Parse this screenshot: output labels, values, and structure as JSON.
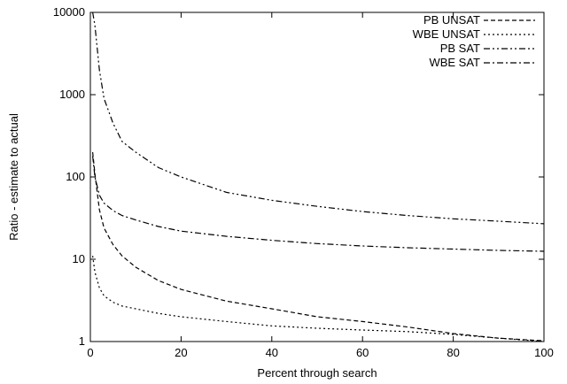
{
  "chart_data": {
    "type": "line",
    "xlabel": "Percent through search",
    "ylabel": "Ratio - estimate to actual",
    "xlim": [
      0,
      100
    ],
    "ylim": [
      1,
      10000
    ],
    "y_scale": "log",
    "grid": false,
    "legend_position": "top-right",
    "x_ticks": [
      "0",
      "20",
      "40",
      "60",
      "80",
      "100"
    ],
    "y_ticks": [
      "1",
      "10",
      "100",
      "1000",
      "10000"
    ],
    "series": [
      {
        "name": "PB UNSAT",
        "style": "dashed",
        "points": [
          [
            0.5,
            200
          ],
          [
            1,
            110
          ],
          [
            2,
            40
          ],
          [
            3,
            24
          ],
          [
            5,
            15
          ],
          [
            7,
            11
          ],
          [
            10,
            8
          ],
          [
            15,
            5.5
          ],
          [
            20,
            4.3
          ],
          [
            30,
            3.1
          ],
          [
            40,
            2.5
          ],
          [
            50,
            2.0
          ],
          [
            60,
            1.75
          ],
          [
            70,
            1.5
          ],
          [
            80,
            1.25
          ],
          [
            90,
            1.1
          ],
          [
            100,
            1.02
          ]
        ]
      },
      {
        "name": "WBE UNSAT",
        "style": "dotted",
        "points": [
          [
            0.5,
            11
          ],
          [
            1,
            7
          ],
          [
            2,
            4.5
          ],
          [
            3,
            3.6
          ],
          [
            5,
            3.0
          ],
          [
            7,
            2.7
          ],
          [
            10,
            2.5
          ],
          [
            15,
            2.2
          ],
          [
            20,
            2.0
          ],
          [
            30,
            1.75
          ],
          [
            40,
            1.55
          ],
          [
            50,
            1.45
          ],
          [
            60,
            1.38
          ],
          [
            70,
            1.32
          ],
          [
            80,
            1.22
          ],
          [
            90,
            1.1
          ],
          [
            100,
            1.0
          ]
        ]
      },
      {
        "name": "PB SAT",
        "style": "dash-dot-dot",
        "points": [
          [
            0.5,
            10000
          ],
          [
            1,
            7000
          ],
          [
            2,
            2000
          ],
          [
            3,
            900
          ],
          [
            5,
            450
          ],
          [
            7,
            270
          ],
          [
            10,
            200
          ],
          [
            15,
            130
          ],
          [
            20,
            100
          ],
          [
            30,
            65
          ],
          [
            40,
            52
          ],
          [
            50,
            44
          ],
          [
            60,
            38
          ],
          [
            70,
            34
          ],
          [
            80,
            31
          ],
          [
            90,
            29
          ],
          [
            100,
            27
          ]
        ]
      },
      {
        "name": "WBE SAT",
        "style": "dash-dot",
        "points": [
          [
            0.5,
            180
          ],
          [
            1,
            100
          ],
          [
            2,
            60
          ],
          [
            3,
            48
          ],
          [
            5,
            39
          ],
          [
            7,
            34
          ],
          [
            10,
            30
          ],
          [
            15,
            25
          ],
          [
            20,
            22
          ],
          [
            30,
            19
          ],
          [
            40,
            17
          ],
          [
            50,
            15.5
          ],
          [
            60,
            14.5
          ],
          [
            70,
            13.8
          ],
          [
            80,
            13.3
          ],
          [
            90,
            12.8
          ],
          [
            100,
            12.5
          ]
        ]
      }
    ]
  }
}
